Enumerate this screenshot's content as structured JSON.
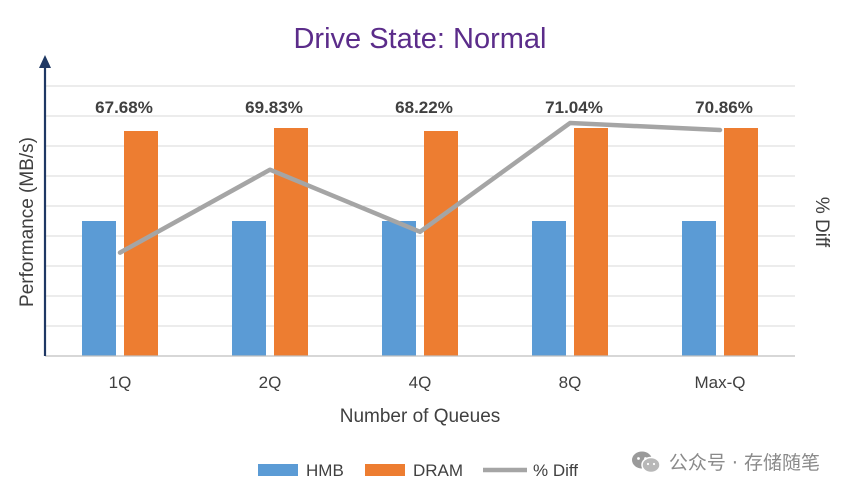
{
  "chart_data": {
    "type": "bar",
    "title": "Drive State: Normal",
    "xlabel": "Number of Queues",
    "ylabel": "Performance (MB/s)",
    "y2label": "% Diff",
    "categories": [
      "1Q",
      "2Q",
      "4Q",
      "8Q",
      "Max-Q"
    ],
    "ylim": [
      0,
      9
    ],
    "y2lim": [
      65,
      72
    ],
    "grid": true,
    "legend_position": "bottom",
    "series": [
      {
        "name": "HMB",
        "type": "bar",
        "axis": "left",
        "color": "#5B9BD5",
        "values": [
          4.5,
          4.5,
          4.5,
          4.5,
          4.5
        ]
      },
      {
        "name": "DRAM",
        "type": "bar",
        "axis": "left",
        "color": "#ED7D31",
        "values": [
          7.5,
          7.6,
          7.5,
          7.6,
          7.6
        ]
      },
      {
        "name": "% Diff",
        "type": "line",
        "axis": "right",
        "color": "#A5A5A5",
        "values": [
          67.68,
          69.83,
          68.22,
          71.04,
          70.86
        ]
      }
    ],
    "data_labels": [
      "67.68%",
      "69.83%",
      "68.22%",
      "71.04%",
      "70.86%"
    ]
  },
  "colors": {
    "title": "#5B2C8A",
    "axis_arrow": "#1F3864",
    "grid": "#D9D9D9",
    "text": "#404040"
  },
  "watermark": {
    "text": "公众号 · 存储随笔"
  }
}
